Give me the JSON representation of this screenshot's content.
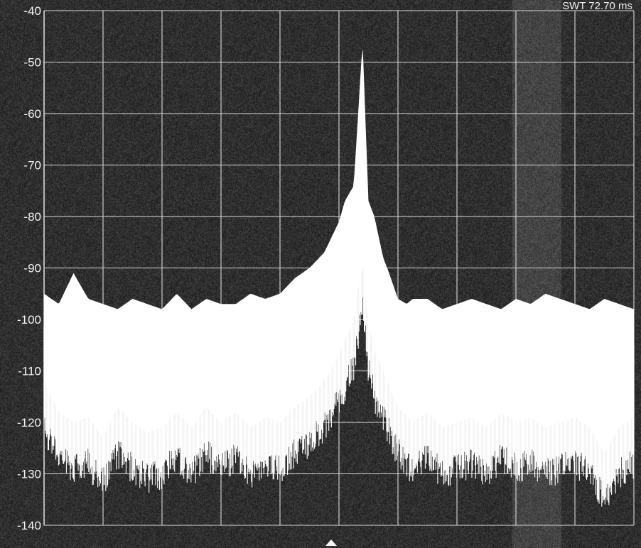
{
  "readout": {
    "sweep_text": "SWT 72.70 ms"
  },
  "chart_data": {
    "type": "line",
    "title": "",
    "xlabel": "",
    "ylabel": "",
    "y_ticks": [
      "-40",
      "-50",
      "-60",
      "-70",
      "-80",
      "-90",
      "-100",
      "-110",
      "-120",
      "-130",
      "-140"
    ],
    "ylim": [
      -140,
      -40
    ],
    "xlim": [
      0,
      10
    ],
    "x_divisions": 10,
    "grid": true,
    "center_marker": "triangle-up",
    "colors": {
      "background": "#262626",
      "grid": "#d8d8d8",
      "trace": "#ffffff",
      "text": "#f2f2f2"
    },
    "series": [
      {
        "x": [
          0,
          0.25,
          0.5,
          0.75,
          1,
          1.25,
          1.5,
          1.75,
          2,
          2.25,
          2.5,
          2.75,
          3,
          3.25,
          3.5,
          3.75,
          4,
          4.25,
          4.5,
          4.75,
          5,
          5.1,
          5.25,
          5.4,
          5.5,
          5.6,
          5.75,
          5.85,
          6,
          6.15,
          6.25,
          6.5,
          6.75,
          7,
          7.25,
          7.5,
          7.75,
          8,
          8.25,
          8.5,
          8.75,
          9,
          9.25,
          9.5,
          9.75,
          10
        ],
        "peak": [
          -101,
          -103,
          -97,
          -102,
          -103,
          -104,
          -102,
          -103,
          -104,
          -101,
          -104,
          -102,
          -103,
          -103,
          -101,
          -102,
          -101,
          -98,
          -96,
          -93,
          -87,
          -83,
          -80,
          -52,
          -83,
          -86,
          -94,
          -97,
          -102,
          -103,
          -102,
          -102,
          -104,
          -103,
          -102,
          -103,
          -104,
          -102,
          -103,
          -101,
          -102,
          -103,
          -104,
          -102,
          -103,
          -104
        ],
        "floor": [
          -118,
          -124,
          -126,
          -125,
          -129,
          -123,
          -126,
          -128,
          -127,
          -124,
          -127,
          -123,
          -126,
          -124,
          -127,
          -125,
          -126,
          -123,
          -121,
          -118,
          -113,
          -110,
          -106,
          -95,
          -107,
          -112,
          -116,
          -119,
          -123,
          -125,
          -126,
          -124,
          -127,
          -126,
          -125,
          -127,
          -124,
          -126,
          -125,
          -127,
          -126,
          -125,
          -127,
          -132,
          -127,
          -125
        ]
      }
    ]
  }
}
